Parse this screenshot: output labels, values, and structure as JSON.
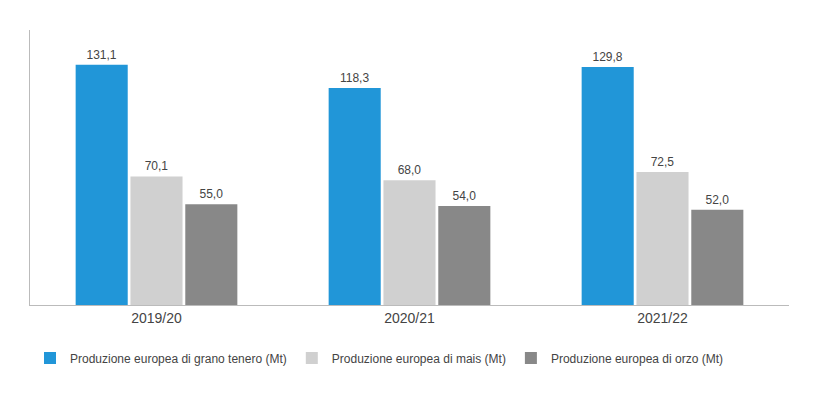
{
  "chart_data": {
    "type": "bar",
    "categories": [
      "2019/20",
      "2020/21",
      "2021/22"
    ],
    "series": [
      {
        "name": "Produzione europea di grano tenero (Mt)",
        "color": "#2196d8",
        "values": [
          131.1,
          118.3,
          129.8
        ],
        "value_labels": [
          "131,1",
          "118,3",
          "129,8"
        ]
      },
      {
        "name": "Produzione europea di mais (Mt)",
        "color": "#d0d0d0",
        "values": [
          70.1,
          68.0,
          72.5
        ],
        "value_labels": [
          "70,1",
          "68,0",
          "72,5"
        ]
      },
      {
        "name": "Produzione europea di orzo (Mt)",
        "color": "#888888",
        "values": [
          55.0,
          54.0,
          52.0
        ],
        "value_labels": [
          "55,0",
          "54,0",
          "52,0"
        ]
      }
    ],
    "ylim": [
      0,
      150
    ],
    "grid": false,
    "legend": "bottom",
    "data_labels": true,
    "tick_labels": "x"
  }
}
